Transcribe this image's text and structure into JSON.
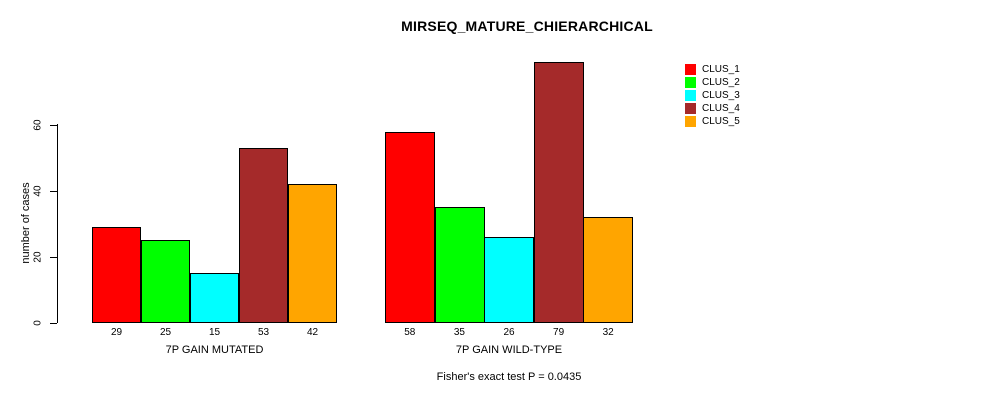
{
  "title": "MIRSEQ_MATURE_CHIERARCHICAL",
  "y_axis": {
    "label": "number of cases",
    "ticks": [
      0,
      20,
      40,
      60
    ]
  },
  "legend": {
    "entries": [
      {
        "label": "CLUS_1",
        "color": "#FF0000"
      },
      {
        "label": "CLUS_2",
        "color": "#00FF00"
      },
      {
        "label": "CLUS_3",
        "color": "#00FFFF"
      },
      {
        "label": "CLUS_4",
        "color": "#A52A2A"
      },
      {
        "label": "CLUS_5",
        "color": "#FFA500"
      }
    ]
  },
  "annotation": "Fisher's exact test P = 0.0435",
  "chart_data": {
    "type": "bar",
    "title": "MIRSEQ_MATURE_CHIERARCHICAL",
    "xlabel": "",
    "ylabel": "number of cases",
    "ylim": [
      0,
      80
    ],
    "y_ticks": [
      0,
      20,
      40,
      60
    ],
    "grid": false,
    "legend_position": "right-outside",
    "series_names": [
      "CLUS_1",
      "CLUS_2",
      "CLUS_3",
      "CLUS_4",
      "CLUS_5"
    ],
    "colors": [
      "#FF0000",
      "#00FF00",
      "#00FFFF",
      "#A52A2A",
      "#FFA500"
    ],
    "groups": [
      {
        "label": "7P GAIN MUTATED",
        "values": [
          29,
          25,
          15,
          53,
          42
        ]
      },
      {
        "label": "7P GAIN WILD-TYPE",
        "values": [
          58,
          35,
          26,
          79,
          32
        ]
      }
    ],
    "bar_value_labels_shown": true,
    "annotation": "Fisher's exact test P = 0.0435"
  }
}
